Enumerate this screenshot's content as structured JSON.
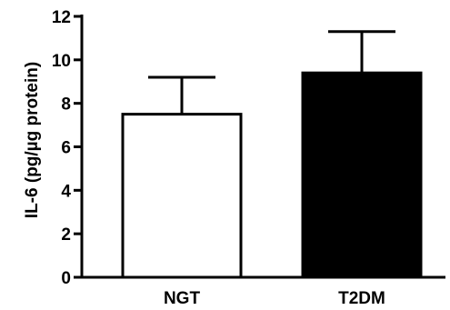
{
  "chart_data": {
    "type": "bar",
    "categories": [
      "NGT",
      "T2DM"
    ],
    "values": [
      7.5,
      9.4
    ],
    "errors": [
      1.7,
      1.9
    ],
    "colors": [
      "#ffffff",
      "#000000"
    ],
    "bar_stroke": "#000000",
    "title": "",
    "xlabel": "",
    "ylabel": "IL-6 (pg/µg protein)",
    "ylim": [
      0,
      12
    ],
    "yticks": [
      0,
      2,
      4,
      6,
      8,
      10,
      12
    ],
    "ytick_labels": [
      "0",
      "2",
      "4",
      "6",
      "8",
      "10",
      "12"
    ],
    "grid": false,
    "legend": "none"
  }
}
